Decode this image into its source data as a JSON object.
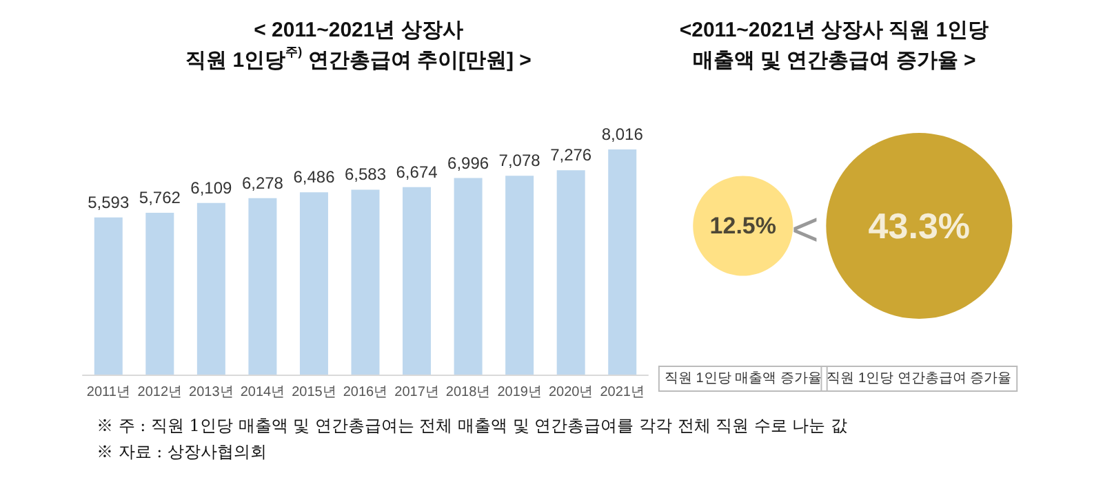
{
  "chart_data": [
    {
      "type": "bar",
      "title": "< 2011~2021년 상장사\n직원 1인당$^{주)}$ 연간총급여 추이[만원] >",
      "categories": [
        "2011년",
        "2012년",
        "2013년",
        "2014년",
        "2015년",
        "2016년",
        "2017년",
        "2018년",
        "2019년",
        "2020년",
        "2021년"
      ],
      "values": [
        5593,
        5762,
        6109,
        6278,
        6486,
        6583,
        6674,
        6996,
        7078,
        7276,
        8016
      ],
      "color": "#bdd7ee",
      "tick_labels": "x",
      "value_labels": [
        "5,593",
        "5,762",
        "6,109",
        "6,278",
        "6,486",
        "6,583",
        "6,674",
        "6,996",
        "7,078",
        "7,276",
        "8,016"
      ],
      "annotations": [
        "※ 주 : 직원 1인당 매출액 및 연간총급여는 전체 매출액 및 연간총급여를 각각 전체 직원 수로 나눈 값",
        "※ 자료 : 상장사협의회"
      ]
    },
    {
      "type": "other",
      "title": "<2011~2021년 상장사 직원 1인당\n매출액 및 연간총급여 증가율 >",
      "categories": [
        "직원 1인당 매출액 증가율",
        "직원 1인당 연간총급여 증가율"
      ],
      "values": [
        12.5,
        43.3
      ],
      "value_labels": [
        "12.5%",
        "43.3%"
      ],
      "colors": [
        "#ffd966",
        "#bf9000"
      ],
      "annotations": [
        "<"
      ]
    }
  ]
}
